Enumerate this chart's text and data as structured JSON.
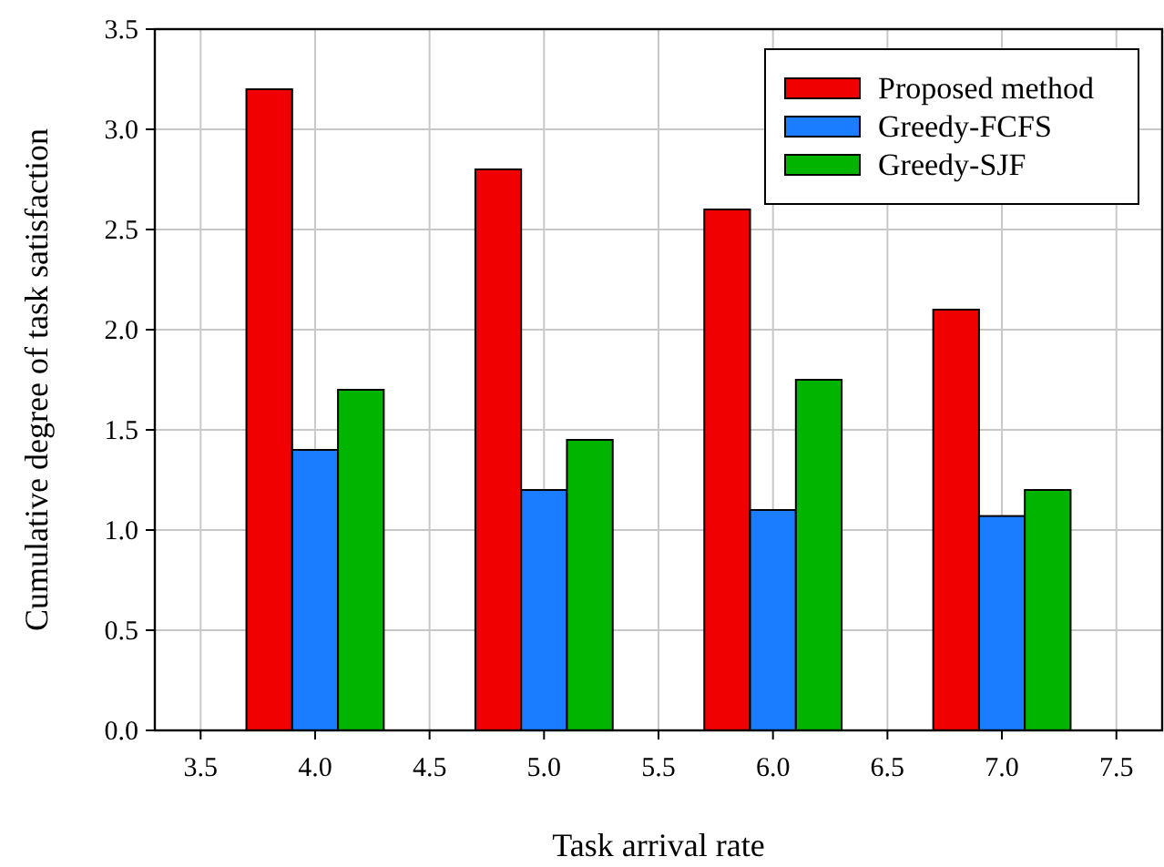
{
  "chart_data": {
    "type": "bar",
    "xlabel": "Task arrival rate",
    "ylabel": "Cumulative degree of task satisfaction",
    "x": [
      4,
      5,
      6,
      7
    ],
    "series": [
      {
        "name": "Proposed method",
        "color": "#f00000",
        "values": [
          3.2,
          2.8,
          2.6,
          2.1
        ]
      },
      {
        "name": "Greedy-FCFS",
        "color": "#1a7cff",
        "values": [
          1.4,
          1.2,
          1.1,
          1.07
        ]
      },
      {
        "name": "Greedy-SJF",
        "color": "#00b400",
        "values": [
          1.7,
          1.45,
          1.75,
          1.2
        ]
      }
    ],
    "xlim": [
      3.3,
      7.7
    ],
    "xticks": [
      {
        "value": 3.5,
        "label": "3.5"
      },
      {
        "value": 4,
        "label": "4.0"
      },
      {
        "value": 4.5,
        "label": "4.5"
      },
      {
        "value": 5,
        "label": "5.0"
      },
      {
        "value": 5.5,
        "label": "5.5"
      },
      {
        "value": 6,
        "label": "6.0"
      },
      {
        "value": 6.5,
        "label": "6.5"
      },
      {
        "value": 7,
        "label": "7.0"
      },
      {
        "value": 7.5,
        "label": "7.5"
      }
    ],
    "ylim": [
      0,
      3.5
    ],
    "yticks": [
      {
        "value": 0,
        "label": "0.0"
      },
      {
        "value": 0.5,
        "label": "0.5"
      },
      {
        "value": 1,
        "label": "1.0"
      },
      {
        "value": 1.5,
        "label": "1.5"
      },
      {
        "value": 2,
        "label": "2.0"
      },
      {
        "value": 2.5,
        "label": "2.5"
      },
      {
        "value": 3,
        "label": "3.0"
      },
      {
        "value": 3.5,
        "label": "3.5"
      }
    ],
    "grid": true,
    "legend": "top right"
  }
}
